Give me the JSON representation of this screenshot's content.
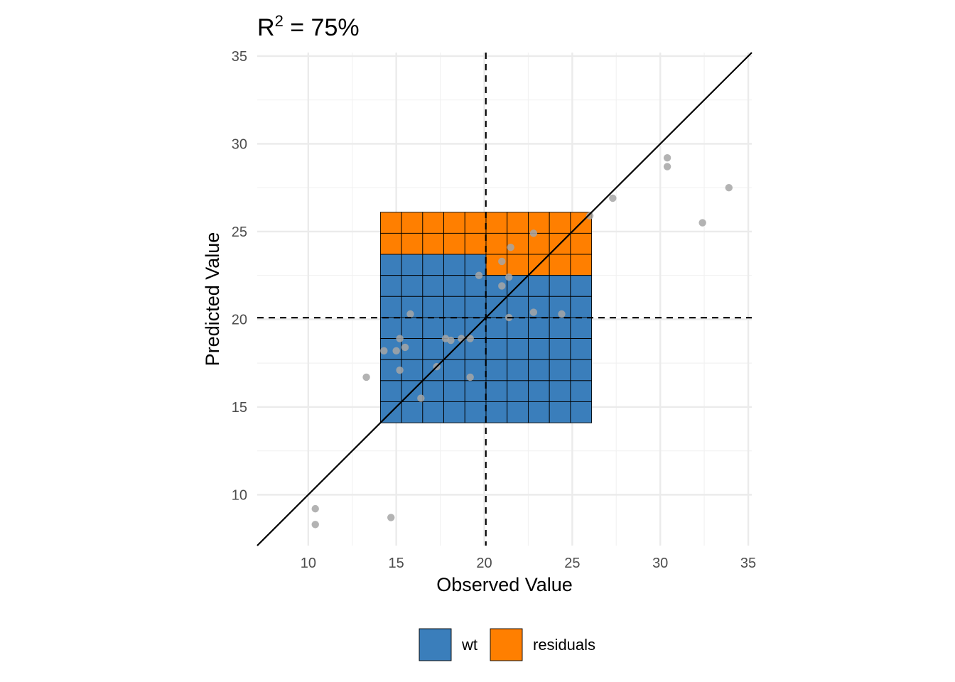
{
  "chart_data": {
    "type": "scatter",
    "title": {
      "prefix": "R",
      "superscript": "2",
      "suffix": " = 75%"
    },
    "xlabel": "Observed Value",
    "ylabel": "Predicted Value",
    "xlim": [
      7.1,
      35.2
    ],
    "ylim": [
      7.1,
      35.2
    ],
    "x_ticks": [
      "10",
      "15",
      "20",
      "25",
      "30",
      "35"
    ],
    "y_ticks": [
      "10",
      "15",
      "20",
      "25",
      "30",
      "35"
    ],
    "x_tick_values": [
      10,
      15,
      20,
      25,
      30,
      35
    ],
    "y_tick_values": [
      10,
      15,
      20,
      25,
      30,
      35
    ],
    "grid": true,
    "points": [
      {
        "x": 10.4,
        "y": 8.3
      },
      {
        "x": 10.4,
        "y": 9.2
      },
      {
        "x": 13.3,
        "y": 16.7
      },
      {
        "x": 14.3,
        "y": 18.2
      },
      {
        "x": 14.7,
        "y": 8.7
      },
      {
        "x": 15.0,
        "y": 18.2
      },
      {
        "x": 15.2,
        "y": 17.1
      },
      {
        "x": 15.2,
        "y": 18.9
      },
      {
        "x": 15.5,
        "y": 18.4
      },
      {
        "x": 15.8,
        "y": 20.3
      },
      {
        "x": 16.4,
        "y": 15.5
      },
      {
        "x": 17.3,
        "y": 17.3
      },
      {
        "x": 17.8,
        "y": 18.9
      },
      {
        "x": 18.1,
        "y": 18.8
      },
      {
        "x": 18.7,
        "y": 18.9
      },
      {
        "x": 19.2,
        "y": 18.9
      },
      {
        "x": 19.2,
        "y": 16.7
      },
      {
        "x": 19.7,
        "y": 22.5
      },
      {
        "x": 21.0,
        "y": 23.3
      },
      {
        "x": 21.0,
        "y": 21.9
      },
      {
        "x": 21.4,
        "y": 22.4
      },
      {
        "x": 21.4,
        "y": 20.1
      },
      {
        "x": 21.5,
        "y": 24.1
      },
      {
        "x": 22.8,
        "y": 24.9
      },
      {
        "x": 22.8,
        "y": 20.4
      },
      {
        "x": 24.4,
        "y": 20.3
      },
      {
        "x": 26.0,
        "y": 25.9
      },
      {
        "x": 27.3,
        "y": 26.9
      },
      {
        "x": 30.4,
        "y": 29.2
      },
      {
        "x": 30.4,
        "y": 28.7
      },
      {
        "x": 32.4,
        "y": 25.5
      },
      {
        "x": 33.9,
        "y": 27.5
      }
    ],
    "point_color": "#a6a6a6",
    "mean_x": 20.09,
    "mean_y": 20.09,
    "identity_line": true,
    "square": {
      "x0": 14.1,
      "x1": 26.1,
      "y0": 14.1,
      "y1": 26.1
    },
    "square_grid": {
      "cols": 10,
      "rows": 10
    },
    "areas": [
      {
        "name": "wt",
        "color": "#3a7ebb",
        "share_percent": 75
      },
      {
        "name": "residuals",
        "color": "#ff7f00",
        "share_percent": 25
      }
    ],
    "legend_position": "bottom"
  }
}
